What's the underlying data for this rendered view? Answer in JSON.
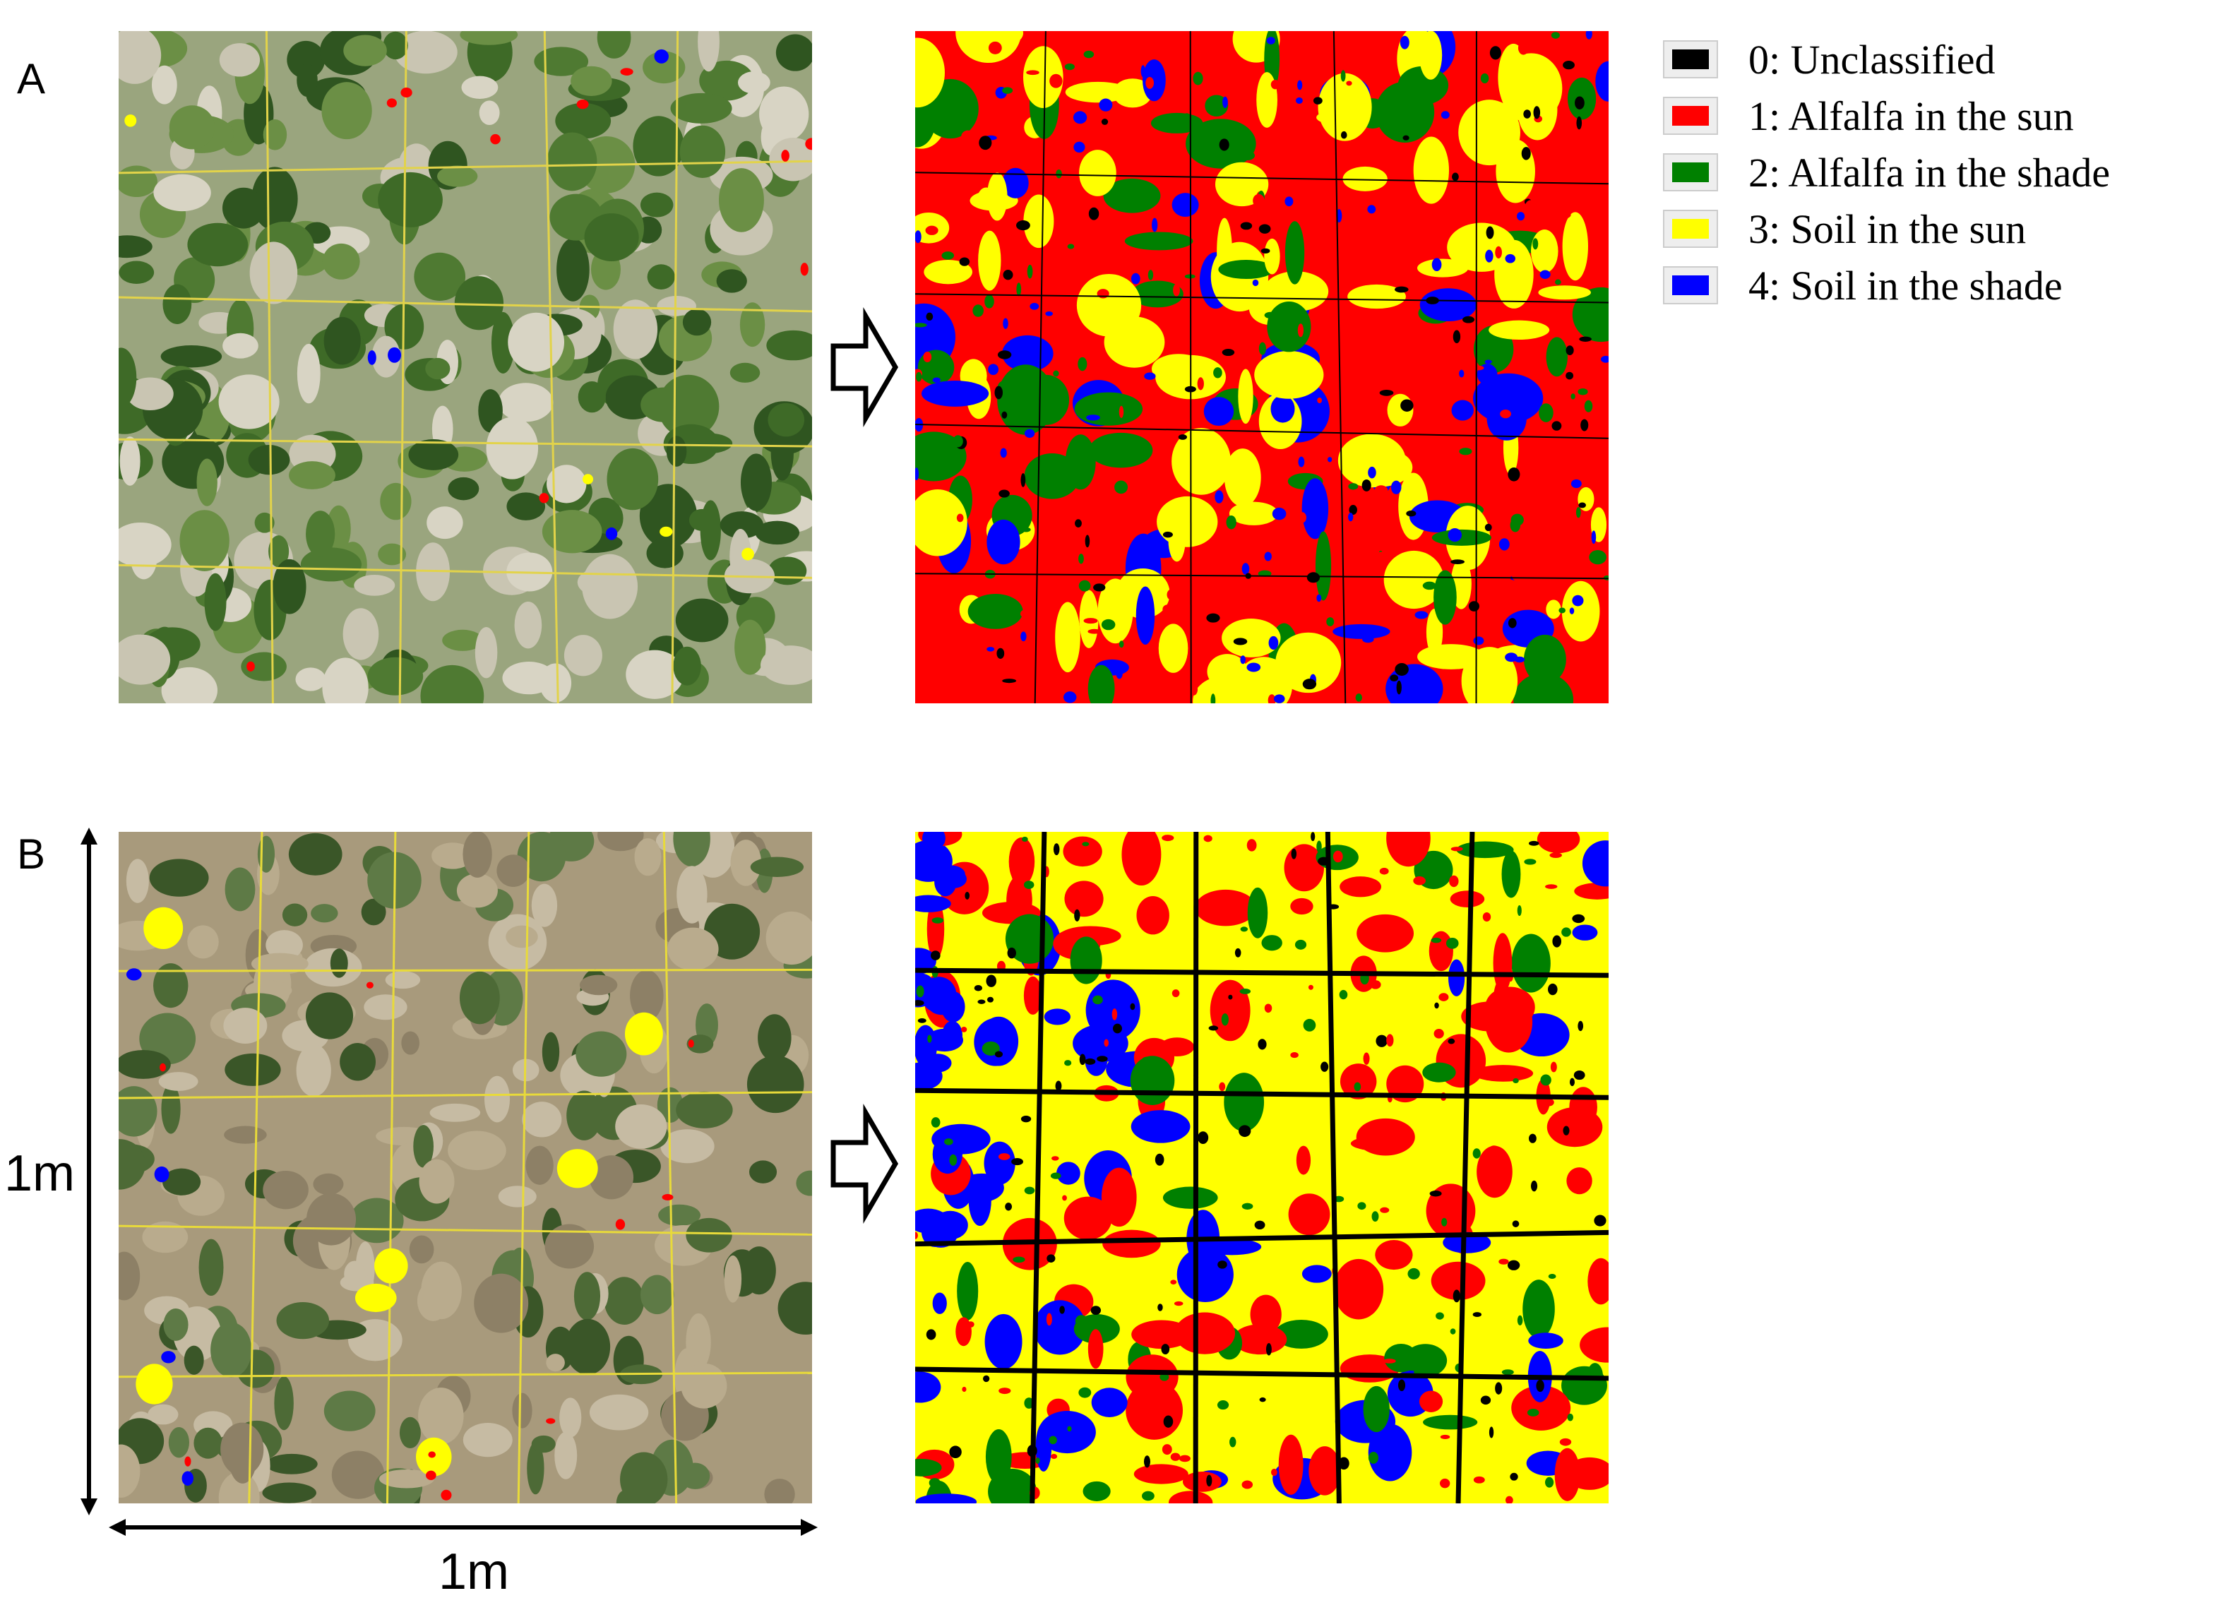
{
  "panels": [
    {
      "label": "A"
    },
    {
      "label": "B"
    }
  ],
  "scale": {
    "vertical": "1m",
    "horizontal": "1m"
  },
  "legend": [
    {
      "label": "0: Unclassified",
      "color": "#000000"
    },
    {
      "label": "1: Alfalfa in the sun",
      "color": "#ff0000"
    },
    {
      "label": "2: Alfalfa in the shade",
      "color": "#008000"
    },
    {
      "label": "3: Soil in the sun",
      "color": "#ffff00"
    },
    {
      "label": "4: Soil in the shade",
      "color": "#0000ff"
    }
  ]
}
